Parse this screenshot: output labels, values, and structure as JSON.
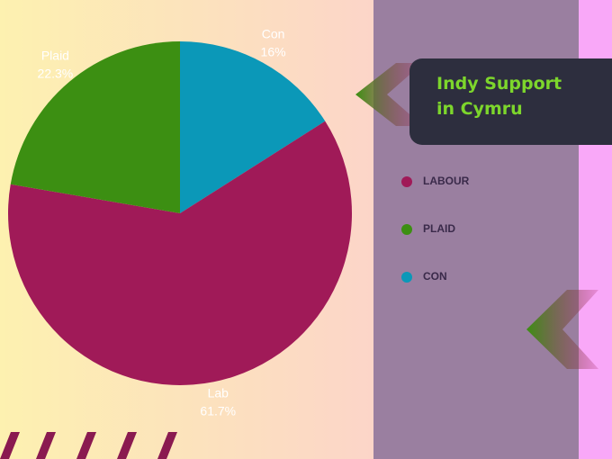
{
  "chart_data": {
    "type": "pie",
    "title": "Indy Support in Cymru",
    "categories": [
      "Con",
      "Lab",
      "Plaid"
    ],
    "values": [
      16,
      61.7,
      22.3
    ],
    "value_labels": [
      "16%",
      "61.7%",
      "22.3%"
    ],
    "colors": [
      "#0b98b8",
      "#a01a58",
      "#3c8f12"
    ],
    "legend": {
      "labels": [
        "LABOUR",
        "PLAID",
        "CON"
      ],
      "colors": [
        "#a01a58",
        "#3c8f12",
        "#0b98b8"
      ]
    }
  }
}
